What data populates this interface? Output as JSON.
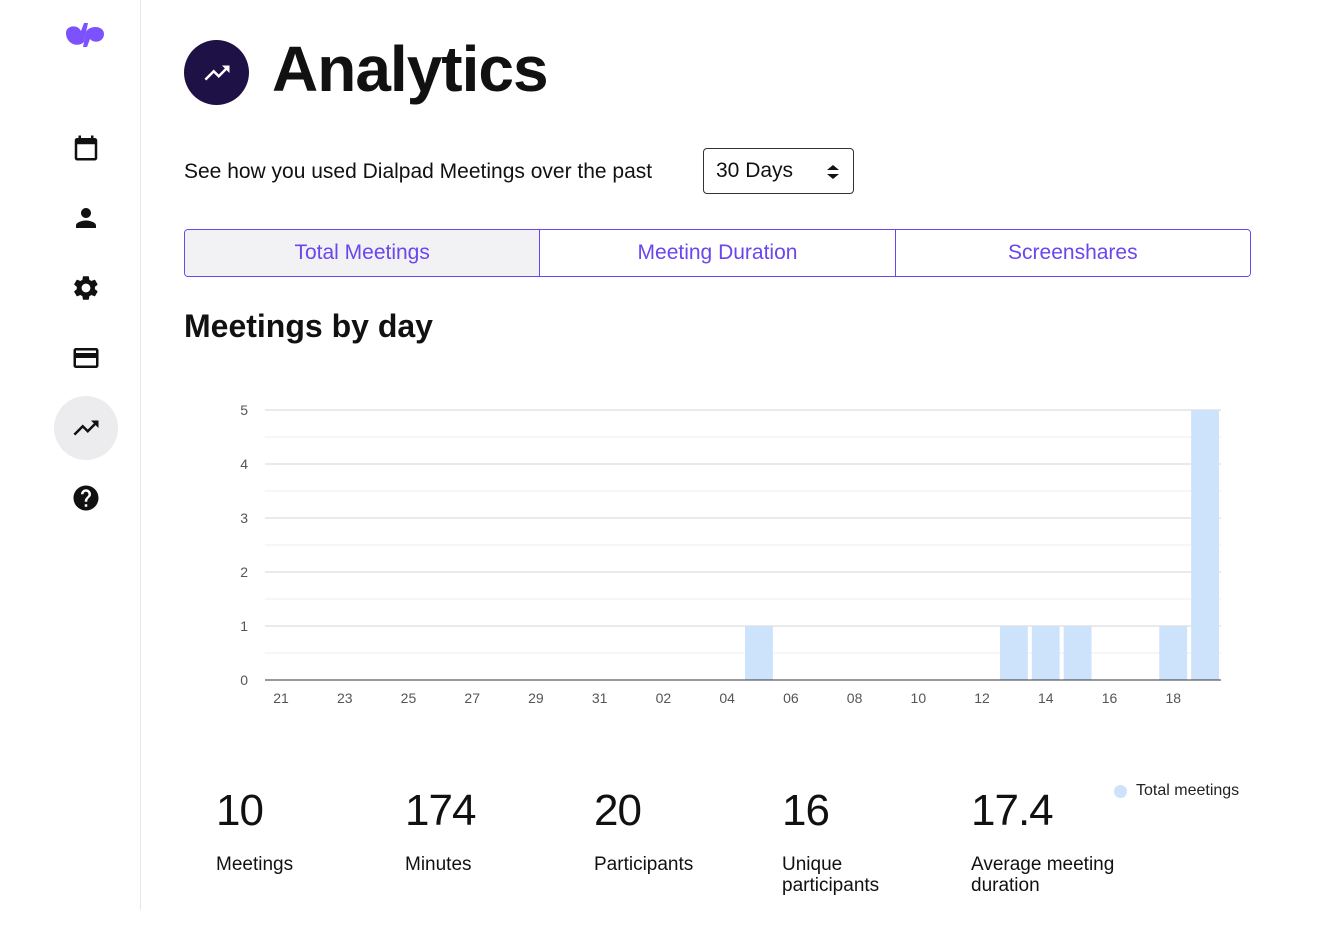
{
  "sidebar": {
    "logo": "dialpad-logo",
    "items": [
      {
        "name": "calendar",
        "icon": "calendar-icon",
        "active": false
      },
      {
        "name": "profile",
        "icon": "person-icon",
        "active": false
      },
      {
        "name": "settings",
        "icon": "gear-icon",
        "active": false
      },
      {
        "name": "billing",
        "icon": "credit-card-icon",
        "active": false
      },
      {
        "name": "analytics",
        "icon": "trending-up-icon",
        "active": true
      },
      {
        "name": "help",
        "icon": "help-icon",
        "active": false
      }
    ]
  },
  "header": {
    "title": "Analytics",
    "icon": "trending-up-icon"
  },
  "intro": {
    "text": "See how you used Dialpad Meetings over the past",
    "range_selected": "30 Days"
  },
  "tabs": [
    {
      "label": "Total Meetings",
      "active": true
    },
    {
      "label": "Meeting Duration",
      "active": false
    },
    {
      "label": "Screenshares",
      "active": false
    }
  ],
  "section": {
    "title": "Meetings by day"
  },
  "chart_data": {
    "type": "bar",
    "title": "Meetings by day",
    "categories": [
      "21",
      "22",
      "23",
      "24",
      "25",
      "26",
      "27",
      "28",
      "29",
      "30",
      "31",
      "01",
      "02",
      "03",
      "04",
      "05",
      "06",
      "07",
      "08",
      "09",
      "10",
      "11",
      "12",
      "13",
      "14",
      "15",
      "16",
      "17",
      "18",
      "19"
    ],
    "tick_labels": [
      "21",
      "23",
      "25",
      "27",
      "29",
      "31",
      "02",
      "04",
      "06",
      "08",
      "10",
      "12",
      "14",
      "16",
      "18"
    ],
    "series": [
      {
        "name": "Total meetings",
        "values": [
          0,
          0,
          0,
          0,
          0,
          0,
          0,
          0,
          0,
          0,
          0,
          0,
          0,
          0,
          0,
          1,
          0,
          0,
          0,
          0,
          0,
          0,
          0,
          1,
          1,
          1,
          0,
          0,
          1,
          5
        ]
      }
    ],
    "yticks": [
      0,
      1,
      2,
      3,
      4,
      5
    ],
    "ylim": [
      0,
      5
    ],
    "grid": true,
    "legend": "bottom-right",
    "bar_color": "#cde3fb"
  },
  "legend": {
    "label": "Total meetings"
  },
  "stats": [
    {
      "value": "10",
      "label": "Meetings"
    },
    {
      "value": "174",
      "label": "Minutes"
    },
    {
      "value": "20",
      "label": "Participants"
    },
    {
      "value": "16",
      "label": "Unique participants"
    },
    {
      "value": "17.4",
      "label": "Average meeting duration"
    }
  ],
  "colors": {
    "accent": "#6b45ee",
    "header_icon_bg": "#1d1145",
    "logo": "#7c52ff",
    "bar": "#cde3fb"
  }
}
